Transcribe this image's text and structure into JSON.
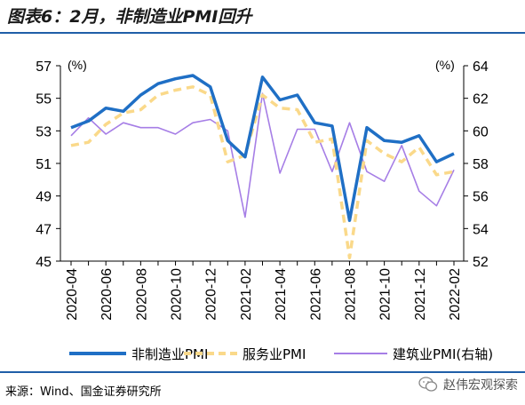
{
  "title": "图表6：2月，非制造业PMI回升",
  "source": "来源：Wind、国金证券研究所",
  "brand": "赵伟宏观探索",
  "chart_data": {
    "type": "line",
    "left_unit": "(%)",
    "right_unit": "(%)",
    "x": [
      "2020-04",
      "2020-05",
      "2020-06",
      "2020-07",
      "2020-08",
      "2020-09",
      "2020-10",
      "2020-11",
      "2020-12",
      "2021-01",
      "2021-02",
      "2021-03",
      "2021-04",
      "2021-05",
      "2021-06",
      "2021-07",
      "2021-08",
      "2021-09",
      "2021-10",
      "2021-11",
      "2021-12",
      "2022-01",
      "2022-02"
    ],
    "xtick_labels": [
      "2020-04",
      "2020-06",
      "2020-08",
      "2020-10",
      "2020-12",
      "2021-02",
      "2021-04",
      "2021-06",
      "2021-08",
      "2021-10",
      "2021-12",
      "2022-02"
    ],
    "ylim_left": [
      45,
      57
    ],
    "yticks_left": [
      45,
      47,
      49,
      51,
      53,
      55,
      57
    ],
    "ylim_right": [
      52,
      64
    ],
    "yticks_right": [
      52,
      54,
      56,
      58,
      60,
      62,
      64
    ],
    "series": [
      {
        "name": "非制造业PMI",
        "axis": "left",
        "color": "#1f6fc5",
        "style": "solid",
        "values": [
          53.2,
          53.6,
          54.4,
          54.2,
          55.2,
          55.9,
          56.2,
          56.4,
          55.7,
          52.4,
          51.4,
          56.3,
          54.9,
          55.2,
          53.5,
          53.3,
          47.5,
          53.2,
          52.4,
          52.3,
          52.7,
          51.1,
          51.6
        ]
      },
      {
        "name": "服务业PMI",
        "axis": "left",
        "color": "#fad98a",
        "style": "dashed",
        "values": [
          52.1,
          52.3,
          53.4,
          54.1,
          54.3,
          55.2,
          55.5,
          55.7,
          55.2,
          51.1,
          51.5,
          55.2,
          54.4,
          54.3,
          52.3,
          52.5,
          45.2,
          52.4,
          51.6,
          51.1,
          52.0,
          50.3,
          50.5
        ]
      },
      {
        "name": "建筑业PMI(右轴)",
        "axis": "right",
        "color": "#a67ee6",
        "style": "solid",
        "values": [
          59.7,
          60.8,
          59.8,
          60.5,
          60.2,
          60.2,
          59.8,
          60.5,
          60.7,
          60.0,
          54.7,
          62.3,
          57.4,
          60.1,
          60.1,
          57.5,
          60.5,
          57.5,
          56.9,
          59.1,
          56.3,
          55.4,
          57.6
        ]
      }
    ]
  }
}
